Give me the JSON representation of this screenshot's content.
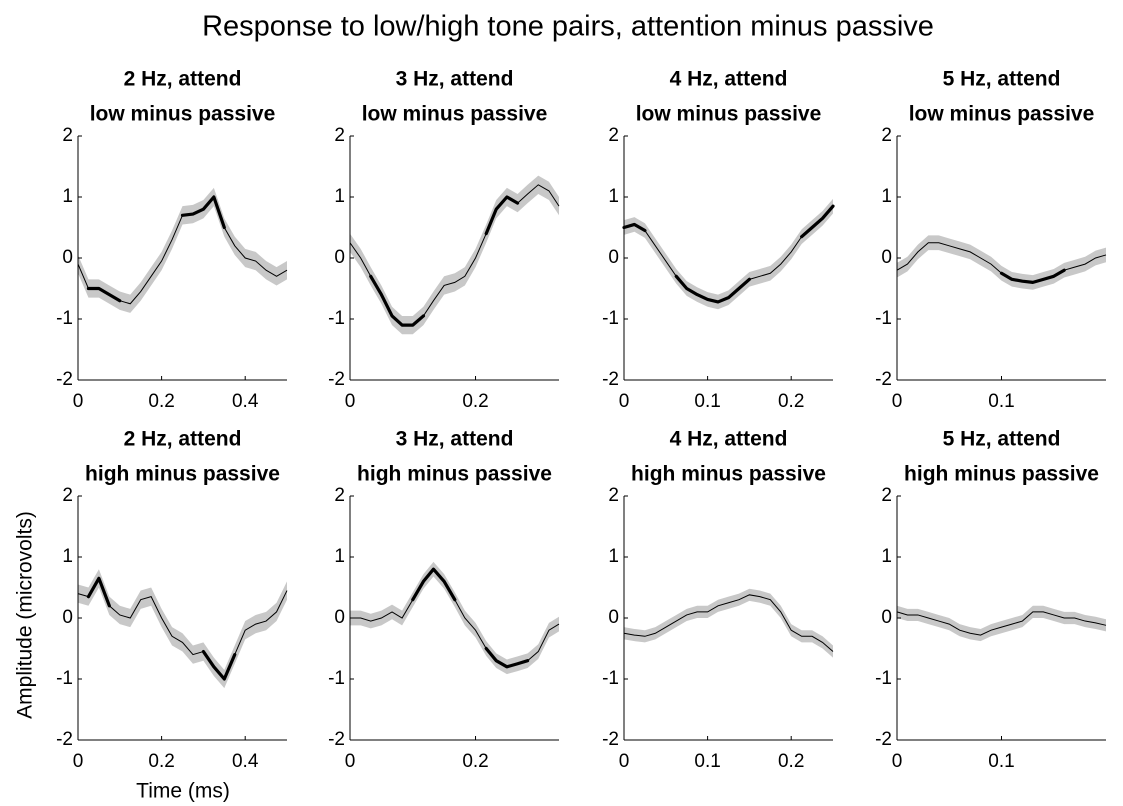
{
  "title": "Response to low/high tone pairs, attention minus passive",
  "ylabel": "Amplitude (microvolts)",
  "xlabel": "Time (ms)",
  "chart_data": [
    {
      "type": "line",
      "title": "2 Hz, attend",
      "subtitle": "low minus passive",
      "x": [
        0,
        0.025,
        0.05,
        0.075,
        0.1,
        0.125,
        0.15,
        0.175,
        0.2,
        0.225,
        0.25,
        0.275,
        0.3,
        0.325,
        0.35,
        0.375,
        0.4,
        0.425,
        0.45,
        0.475,
        0.5
      ],
      "series": [
        {
          "color": "#000000",
          "band_color": "#c8c8c8",
          "error": 0.15,
          "values": [
            -0.1,
            -0.5,
            -0.5,
            -0.6,
            -0.7,
            -0.75,
            -0.55,
            -0.3,
            -0.05,
            0.3,
            0.7,
            0.72,
            0.8,
            1.0,
            0.5,
            0.2,
            0.0,
            -0.05,
            -0.2,
            -0.3,
            -0.2
          ],
          "significant": [
            false,
            true,
            true,
            true,
            true,
            false,
            false,
            false,
            false,
            false,
            true,
            true,
            true,
            true,
            true,
            false,
            false,
            false,
            false,
            false,
            false
          ]
        }
      ],
      "xlim": [
        0,
        0.5
      ],
      "xticks": [
        0,
        0.2,
        0.4
      ],
      "ylim": [
        -2,
        2
      ],
      "yticks": [
        -2,
        -1,
        0,
        1,
        2
      ]
    },
    {
      "type": "line",
      "title": "3 Hz, attend",
      "subtitle": "low minus passive",
      "x": [
        0,
        0.017,
        0.033,
        0.05,
        0.067,
        0.083,
        0.1,
        0.117,
        0.133,
        0.15,
        0.167,
        0.183,
        0.2,
        0.217,
        0.233,
        0.25,
        0.267,
        0.283,
        0.3,
        0.317,
        0.333
      ],
      "series": [
        {
          "color": "#000000",
          "band_color": "#c8c8c8",
          "error": 0.15,
          "values": [
            0.25,
            0.0,
            -0.3,
            -0.6,
            -0.95,
            -1.1,
            -1.1,
            -0.95,
            -0.7,
            -0.45,
            -0.4,
            -0.3,
            0.0,
            0.4,
            0.8,
            1.0,
            0.9,
            1.05,
            1.2,
            1.1,
            0.85
          ],
          "significant": [
            false,
            false,
            true,
            true,
            true,
            true,
            true,
            true,
            false,
            false,
            false,
            false,
            false,
            true,
            true,
            true,
            true,
            false,
            false,
            false,
            false
          ]
        }
      ],
      "xlim": [
        0,
        0.333
      ],
      "xticks": [
        0,
        0.2
      ],
      "ylim": [
        -2,
        2
      ],
      "yticks": [
        -2,
        -1,
        0,
        1,
        2
      ]
    },
    {
      "type": "line",
      "title": "4 Hz, attend",
      "subtitle": "low minus passive",
      "x": [
        0,
        0.0125,
        0.025,
        0.0375,
        0.05,
        0.0625,
        0.075,
        0.0875,
        0.1,
        0.1125,
        0.125,
        0.1375,
        0.15,
        0.1625,
        0.175,
        0.1875,
        0.2,
        0.2125,
        0.225,
        0.2375,
        0.25
      ],
      "series": [
        {
          "color": "#000000",
          "band_color": "#c8c8c8",
          "error": 0.12,
          "values": [
            0.5,
            0.55,
            0.45,
            0.2,
            -0.05,
            -0.3,
            -0.5,
            -0.6,
            -0.68,
            -0.72,
            -0.65,
            -0.5,
            -0.35,
            -0.3,
            -0.25,
            -0.1,
            0.1,
            0.35,
            0.5,
            0.65,
            0.85
          ],
          "significant": [
            true,
            true,
            true,
            false,
            false,
            true,
            true,
            true,
            true,
            true,
            true,
            true,
            true,
            false,
            false,
            false,
            false,
            true,
            true,
            true,
            true
          ]
        }
      ],
      "xlim": [
        0,
        0.25
      ],
      "xticks": [
        0,
        0.1,
        0.2
      ],
      "ylim": [
        -2,
        2
      ],
      "yticks": [
        -2,
        -1,
        0,
        1,
        2
      ]
    },
    {
      "type": "line",
      "title": "5 Hz, attend",
      "subtitle": "low minus passive",
      "x": [
        0,
        0.01,
        0.02,
        0.03,
        0.04,
        0.05,
        0.06,
        0.07,
        0.08,
        0.09,
        0.1,
        0.11,
        0.12,
        0.13,
        0.14,
        0.15,
        0.16,
        0.17,
        0.18,
        0.19,
        0.2
      ],
      "series": [
        {
          "color": "#000000",
          "band_color": "#c8c8c8",
          "error": 0.12,
          "values": [
            -0.2,
            -0.1,
            0.1,
            0.25,
            0.25,
            0.2,
            0.15,
            0.1,
            0.0,
            -0.1,
            -0.25,
            -0.35,
            -0.38,
            -0.4,
            -0.35,
            -0.3,
            -0.2,
            -0.15,
            -0.1,
            0.0,
            0.05
          ],
          "significant": [
            false,
            false,
            false,
            false,
            false,
            false,
            false,
            false,
            false,
            false,
            true,
            true,
            true,
            true,
            true,
            true,
            true,
            false,
            false,
            false,
            false
          ]
        }
      ],
      "xlim": [
        0,
        0.2
      ],
      "xticks": [
        0,
        0.1
      ],
      "ylim": [
        -2,
        2
      ],
      "yticks": [
        -2,
        -1,
        0,
        1,
        2
      ]
    },
    {
      "type": "line",
      "title": "2 Hz, attend",
      "subtitle": "high minus passive",
      "x": [
        0,
        0.025,
        0.05,
        0.075,
        0.1,
        0.125,
        0.15,
        0.175,
        0.2,
        0.225,
        0.25,
        0.275,
        0.3,
        0.325,
        0.35,
        0.375,
        0.4,
        0.425,
        0.45,
        0.475,
        0.5
      ],
      "series": [
        {
          "color": "#000000",
          "band_color": "#c8c8c8",
          "error": 0.15,
          "values": [
            0.4,
            0.35,
            0.65,
            0.2,
            0.05,
            0.0,
            0.3,
            0.35,
            0.0,
            -0.3,
            -0.4,
            -0.6,
            -0.55,
            -0.8,
            -1.0,
            -0.6,
            -0.2,
            -0.1,
            -0.05,
            0.1,
            0.45
          ],
          "significant": [
            false,
            true,
            true,
            true,
            false,
            false,
            false,
            false,
            false,
            false,
            false,
            false,
            true,
            true,
            true,
            true,
            false,
            false,
            false,
            false,
            false
          ]
        }
      ],
      "xlim": [
        0,
        0.5
      ],
      "xticks": [
        0,
        0.2,
        0.4
      ],
      "ylim": [
        -2,
        2
      ],
      "yticks": [
        -2,
        -1,
        0,
        1,
        2
      ]
    },
    {
      "type": "line",
      "title": "3 Hz, attend",
      "subtitle": "high minus passive",
      "x": [
        0,
        0.017,
        0.033,
        0.05,
        0.067,
        0.083,
        0.1,
        0.117,
        0.133,
        0.15,
        0.167,
        0.183,
        0.2,
        0.217,
        0.233,
        0.25,
        0.267,
        0.283,
        0.3,
        0.317,
        0.333
      ],
      "series": [
        {
          "color": "#000000",
          "band_color": "#c8c8c8",
          "error": 0.12,
          "values": [
            0.0,
            0.0,
            -0.05,
            0.0,
            0.1,
            0.0,
            0.3,
            0.6,
            0.8,
            0.6,
            0.3,
            0.0,
            -0.2,
            -0.5,
            -0.7,
            -0.8,
            -0.75,
            -0.7,
            -0.55,
            -0.2,
            -0.1
          ],
          "significant": [
            false,
            false,
            false,
            false,
            false,
            false,
            true,
            true,
            true,
            true,
            true,
            false,
            false,
            true,
            true,
            true,
            true,
            true,
            false,
            false,
            false
          ]
        }
      ],
      "xlim": [
        0,
        0.333
      ],
      "xticks": [
        0,
        0.2
      ],
      "ylim": [
        -2,
        2
      ],
      "yticks": [
        -2,
        -1,
        0,
        1,
        2
      ]
    },
    {
      "type": "line",
      "title": "4 Hz, attend",
      "subtitle": "high minus passive",
      "x": [
        0,
        0.0125,
        0.025,
        0.0375,
        0.05,
        0.0625,
        0.075,
        0.0875,
        0.1,
        0.1125,
        0.125,
        0.1375,
        0.15,
        0.1625,
        0.175,
        0.1875,
        0.2,
        0.2125,
        0.225,
        0.2375,
        0.25
      ],
      "series": [
        {
          "color": "#000000",
          "band_color": "#c8c8c8",
          "error": 0.1,
          "values": [
            -0.25,
            -0.28,
            -0.3,
            -0.25,
            -0.15,
            -0.05,
            0.05,
            0.1,
            0.1,
            0.2,
            0.25,
            0.3,
            0.38,
            0.35,
            0.3,
            0.1,
            -0.2,
            -0.3,
            -0.3,
            -0.4,
            -0.55
          ],
          "significant": [
            false,
            false,
            false,
            false,
            false,
            false,
            false,
            false,
            false,
            false,
            false,
            false,
            false,
            false,
            false,
            false,
            false,
            false,
            false,
            false,
            false
          ]
        }
      ],
      "xlim": [
        0,
        0.25
      ],
      "xticks": [
        0,
        0.1,
        0.2
      ],
      "ylim": [
        -2,
        2
      ],
      "yticks": [
        -2,
        -1,
        0,
        1,
        2
      ]
    },
    {
      "type": "line",
      "title": "5 Hz, attend",
      "subtitle": "high minus passive",
      "x": [
        0,
        0.01,
        0.02,
        0.03,
        0.04,
        0.05,
        0.06,
        0.07,
        0.08,
        0.09,
        0.1,
        0.11,
        0.12,
        0.13,
        0.14,
        0.15,
        0.16,
        0.17,
        0.18,
        0.19,
        0.2
      ],
      "series": [
        {
          "color": "#000000",
          "band_color": "#c8c8c8",
          "error": 0.1,
          "values": [
            0.1,
            0.05,
            0.05,
            0.0,
            -0.05,
            -0.1,
            -0.2,
            -0.25,
            -0.28,
            -0.2,
            -0.15,
            -0.1,
            -0.05,
            0.1,
            0.1,
            0.05,
            0.0,
            0.0,
            -0.05,
            -0.08,
            -0.12
          ],
          "significant": [
            false,
            false,
            false,
            false,
            false,
            false,
            false,
            false,
            false,
            false,
            false,
            false,
            false,
            false,
            false,
            false,
            false,
            false,
            false,
            false,
            false
          ]
        }
      ],
      "xlim": [
        0,
        0.2
      ],
      "xticks": [
        0,
        0.1
      ],
      "ylim": [
        -2,
        2
      ],
      "yticks": [
        -2,
        -1,
        0,
        1,
        2
      ]
    }
  ]
}
